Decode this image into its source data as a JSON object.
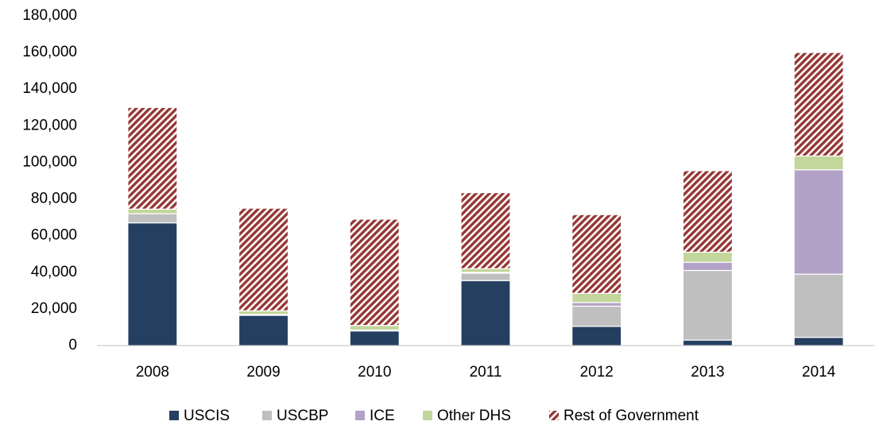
{
  "chart_data": {
    "type": "stacked_bar",
    "categories": [
      "2008",
      "2009",
      "2010",
      "2011",
      "2012",
      "2013",
      "2014"
    ],
    "series": [
      {
        "name": "USCIS",
        "color": "#243f60",
        "values": [
          67000,
          16500,
          8000,
          35500,
          10500,
          3000,
          4500
        ]
      },
      {
        "name": "USCBP",
        "color": "#bfbfbf",
        "values": [
          5000,
          500,
          500,
          4000,
          11000,
          38000,
          34500
        ]
      },
      {
        "name": "ICE",
        "color": "#b3a2c7",
        "values": [
          0,
          0,
          0,
          500,
          2000,
          4500,
          57000
        ]
      },
      {
        "name": "Other DHS",
        "color": "#c3d69b",
        "values": [
          2500,
          2000,
          2500,
          2000,
          5000,
          5500,
          7500
        ]
      },
      {
        "name": "Rest of Government",
        "color": "#953735",
        "pattern": "diagonal-stripes",
        "values": [
          55500,
          56000,
          58000,
          41500,
          43000,
          44500,
          56500
        ]
      }
    ],
    "ylim": [
      0,
      180000
    ],
    "yticks": [
      0,
      {
        "value": 20000,
        "label": "20,000"
      },
      {
        "value": 40000,
        "label": "40,000"
      },
      {
        "value": 60000,
        "label": "60,000"
      },
      {
        "value": 80000,
        "label": "80,000"
      },
      {
        "value": 100000,
        "label": "100,000"
      },
      {
        "value": 120000,
        "label": "120,000"
      },
      {
        "value": 140000,
        "label": "140,000"
      },
      {
        "value": 160000,
        "label": "160,000"
      },
      {
        "value": 180000,
        "label": "180,000"
      }
    ],
    "grid": false,
    "legend": "bottom"
  }
}
